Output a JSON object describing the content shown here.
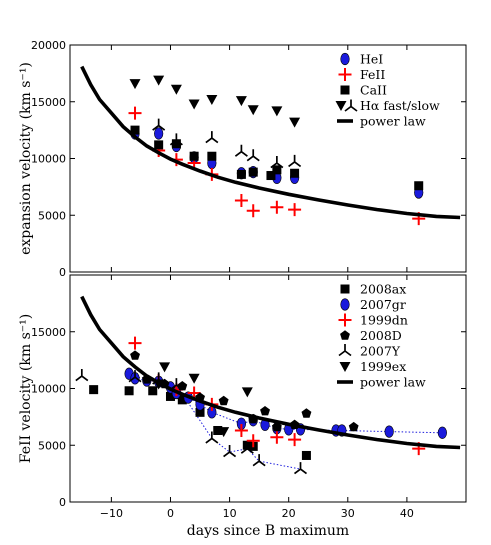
{
  "chart_data": [
    {
      "type": "scatter",
      "xlim": [
        -17,
        50
      ],
      "ylim": [
        0,
        20000
      ],
      "yticks": [
        0,
        5000,
        10000,
        15000,
        20000
      ],
      "ylabel": "expansion velocity (km s⁻¹)",
      "grid": false,
      "legend_position": "top-right",
      "series": [
        {
          "name": "HeI",
          "marker": "ellipse",
          "color": "#1a1adc",
          "points": [
            [
              -6,
              12200
            ],
            [
              -2,
              12200
            ],
            [
              1,
              11100
            ],
            [
              4,
              10100
            ],
            [
              7,
              9600
            ],
            [
              12,
              8700
            ],
            [
              14,
              8800
            ],
            [
              18,
              8300
            ],
            [
              21,
              8300
            ],
            [
              42,
              7000
            ]
          ]
        },
        {
          "name": "FeII",
          "marker": "plus",
          "color": "#ff0000",
          "points": [
            [
              -6,
              14000
            ],
            [
              -2,
              10700
            ],
            [
              1,
              9900
            ],
            [
              4,
              9600
            ],
            [
              7,
              8600
            ],
            [
              12,
              6300
            ],
            [
              14,
              5400
            ],
            [
              18,
              5700
            ],
            [
              21,
              5500
            ],
            [
              42,
              4700
            ]
          ]
        },
        {
          "name": "CaII",
          "marker": "square",
          "color": "#000000",
          "points": [
            [
              -6,
              12500
            ],
            [
              -2,
              11200
            ],
            [
              1,
              11300
            ],
            [
              4,
              10200
            ],
            [
              7,
              10200
            ],
            [
              12,
              8600
            ],
            [
              14,
              8800
            ],
            [
              17,
              8500
            ],
            [
              18,
              9000
            ],
            [
              21,
              8700
            ],
            [
              42,
              7600
            ]
          ]
        },
        {
          "name": "Hα fast/slow",
          "marker": "triangle",
          "color": "#000000",
          "points": [
            [
              -6,
              16600
            ],
            [
              -2,
              16900
            ],
            [
              1,
              16100
            ],
            [
              4,
              14800
            ],
            [
              7,
              15200
            ],
            [
              12,
              15100
            ],
            [
              14,
              14300
            ],
            [
              18,
              14200
            ],
            [
              21,
              13200
            ]
          ]
        },
        {
          "name": "",
          "marker": "tri",
          "color": "#000000",
          "points": [
            [
              -2,
              12900
            ],
            [
              1,
              11600
            ],
            [
              7,
              11800
            ],
            [
              12,
              10600
            ],
            [
              14,
              10200
            ],
            [
              18,
              9600
            ],
            [
              21,
              9700
            ]
          ]
        },
        {
          "name": "power law",
          "marker": "line",
          "color": "#000000",
          "points": [
            [
              -15,
              18100
            ],
            [
              -13.5,
              16500
            ],
            [
              -12,
              15200
            ],
            [
              -10,
              14000
            ],
            [
              -8,
              12800
            ],
            [
              -6,
              11900
            ],
            [
              -4,
              11100
            ],
            [
              -2,
              10500
            ],
            [
              0,
              9950
            ],
            [
              2,
              9500
            ],
            [
              5,
              8900
            ],
            [
              8,
              8350
            ],
            [
              11,
              7900
            ],
            [
              15,
              7400
            ],
            [
              20,
              6850
            ],
            [
              25,
              6350
            ],
            [
              30,
              5900
            ],
            [
              35,
              5500
            ],
            [
              40,
              5150
            ],
            [
              45,
              4900
            ],
            [
              49,
              4800
            ]
          ]
        }
      ]
    },
    {
      "type": "scatter",
      "xlim": [
        -17,
        50
      ],
      "ylim": [
        0,
        20000
      ],
      "yticks": [
        0,
        5000,
        10000,
        15000
      ],
      "xticks": [
        -10,
        0,
        10,
        20,
        30,
        40
      ],
      "xlabel": "days since B maximum",
      "ylabel": "FeII velocity (km s⁻¹)",
      "grid": false,
      "legend_position": "top-right",
      "series": [
        {
          "name": "2008ax",
          "marker": "square",
          "color": "#000000",
          "points": [
            [
              -13,
              9900
            ],
            [
              -7,
              9800
            ],
            [
              -3,
              9800
            ],
            [
              0,
              9300
            ],
            [
              2,
              9000
            ],
            [
              5,
              7900
            ],
            [
              8,
              6300
            ],
            [
              13,
              5000
            ],
            [
              14,
              4900
            ],
            [
              23,
              4100
            ]
          ]
        },
        {
          "name": "2007gr",
          "marker": "ellipse",
          "color": "#1a1adc",
          "points": [
            [
              -7,
              11300
            ],
            [
              -6,
              10900
            ],
            [
              -4,
              10700
            ],
            [
              -2,
              10600
            ],
            [
              0,
              10100
            ],
            [
              1,
              9600
            ],
            [
              3,
              9200
            ],
            [
              5,
              8600
            ],
            [
              7,
              7900
            ],
            [
              12,
              6900
            ],
            [
              14,
              7200
            ],
            [
              16,
              6800
            ],
            [
              18,
              6500
            ],
            [
              20,
              6400
            ],
            [
              22,
              6400
            ],
            [
              28,
              6300
            ],
            [
              29,
              6300
            ],
            [
              37,
              6200
            ],
            [
              46,
              6100
            ]
          ]
        },
        {
          "name": "1999dn",
          "marker": "plus",
          "color": "#ff0000",
          "points": [
            [
              -6,
              14000
            ],
            [
              -2,
              10700
            ],
            [
              1,
              9900
            ],
            [
              4,
              9600
            ],
            [
              7,
              8600
            ],
            [
              12,
              6300
            ],
            [
              14,
              5400
            ],
            [
              18,
              5700
            ],
            [
              21,
              5500
            ],
            [
              42,
              4700
            ]
          ]
        },
        {
          "name": "2008D",
          "marker": "pentagon",
          "color": "#000000",
          "points": [
            [
              -6,
              12900
            ],
            [
              -4,
              10800
            ],
            [
              -1,
              10400
            ],
            [
              2,
              10200
            ],
            [
              5,
              9200
            ],
            [
              9,
              8900
            ],
            [
              14,
              7300
            ],
            [
              16,
              8000
            ],
            [
              18,
              6600
            ],
            [
              21,
              6800
            ],
            [
              23,
              7800
            ],
            [
              31,
              6600
            ]
          ]
        },
        {
          "name": "2007Y",
          "marker": "tri",
          "color": "#000000",
          "points": [
            [
              -15,
              11100
            ],
            [
              -6,
              11000
            ],
            [
              -2,
              10800
            ],
            [
              1,
              10300
            ],
            [
              7,
              5600
            ],
            [
              10,
              4400
            ],
            [
              13,
              4700
            ],
            [
              15,
              3600
            ],
            [
              22,
              2900
            ]
          ]
        },
        {
          "name": "1999ex",
          "marker": "triangle",
          "color": "#000000",
          "points": [
            [
              -2,
              10400
            ],
            [
              -1,
              11900
            ],
            [
              4,
              10900
            ],
            [
              9,
              6200
            ],
            [
              13,
              9700
            ]
          ]
        },
        {
          "name": "power law",
          "marker": "line",
          "color": "#000000",
          "points": [
            [
              -15,
              18100
            ],
            [
              -13.5,
              16500
            ],
            [
              -12,
              15200
            ],
            [
              -10,
              14000
            ],
            [
              -8,
              12800
            ],
            [
              -6,
              11900
            ],
            [
              -4,
              11100
            ],
            [
              -2,
              10500
            ],
            [
              0,
              9950
            ],
            [
              2,
              9500
            ],
            [
              5,
              8900
            ],
            [
              8,
              8350
            ],
            [
              11,
              7900
            ],
            [
              15,
              7400
            ],
            [
              20,
              6850
            ],
            [
              25,
              6350
            ],
            [
              30,
              5900
            ],
            [
              35,
              5500
            ],
            [
              40,
              5150
            ],
            [
              45,
              4900
            ],
            [
              49,
              4800
            ]
          ]
        }
      ],
      "dotted_connectors": [
        [
          [
            -7,
            11300
          ],
          [
            -6,
            10900
          ],
          [
            -4,
            10700
          ],
          [
            -2,
            10600
          ],
          [
            0,
            10100
          ],
          [
            1,
            9600
          ],
          [
            3,
            9200
          ],
          [
            5,
            8600
          ],
          [
            7,
            7900
          ],
          [
            12,
            6900
          ],
          [
            14,
            7200
          ],
          [
            16,
            6800
          ],
          [
            18,
            6500
          ],
          [
            20,
            6400
          ],
          [
            22,
            6400
          ],
          [
            28,
            6300
          ],
          [
            29,
            6300
          ],
          [
            37,
            6200
          ],
          [
            46,
            6100
          ]
        ],
        [
          [
            -6,
            11000
          ],
          [
            -2,
            10800
          ],
          [
            1,
            10300
          ],
          [
            7,
            5600
          ],
          [
            10,
            4400
          ],
          [
            13,
            4700
          ],
          [
            15,
            3600
          ],
          [
            22,
            2900
          ]
        ]
      ]
    }
  ],
  "colors": {
    "axis": "#000000",
    "blue_marker": "#1a1adc",
    "red_marker": "#ff0000",
    "dotted_line": "#1a1adc"
  }
}
